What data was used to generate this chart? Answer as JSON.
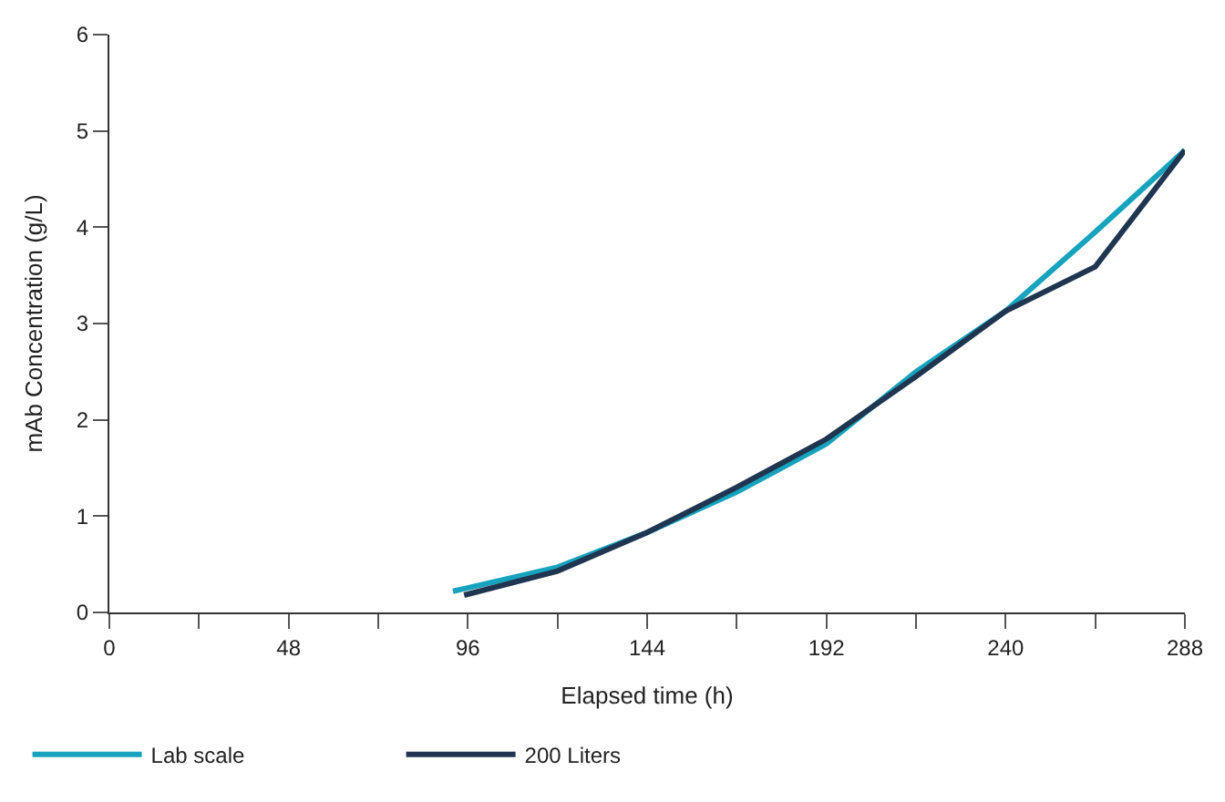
{
  "chart_data": {
    "type": "line",
    "xlabel": "Elapsed time (h)",
    "ylabel": "mAb Concentration (g/L)",
    "xlim": [
      0,
      288
    ],
    "xticks": [
      0,
      {
        "value": 24,
        "label": null
      },
      48,
      {
        "value": 72,
        "label": null
      },
      96,
      {
        "value": 120,
        "label": null
      },
      144,
      {
        "value": 168,
        "label": null
      },
      192,
      {
        "value": 216,
        "label": null
      },
      240,
      {
        "value": 264,
        "label": null
      },
      288
    ],
    "ylim": [
      0,
      6
    ],
    "yticks": [
      0,
      1,
      2,
      3,
      4,
      5,
      6
    ],
    "legend": "bottom left",
    "marker": "none",
    "line_style": "solid",
    "series": [
      {
        "name": "Lab scale",
        "color": "#17a3bd",
        "x": [
          92,
          120,
          144,
          168,
          192,
          216,
          240,
          264,
          288
        ],
        "values": [
          0.22,
          0.47,
          0.83,
          1.25,
          1.75,
          2.5,
          3.13,
          3.95,
          4.8
        ]
      },
      {
        "name": "200 Liters",
        "color": "#1f3550",
        "x": [
          95,
          120,
          144,
          168,
          192,
          216,
          240,
          264,
          288
        ],
        "values": [
          0.18,
          0.43,
          0.83,
          1.3,
          1.8,
          2.45,
          3.13,
          3.59,
          4.8
        ]
      }
    ]
  }
}
